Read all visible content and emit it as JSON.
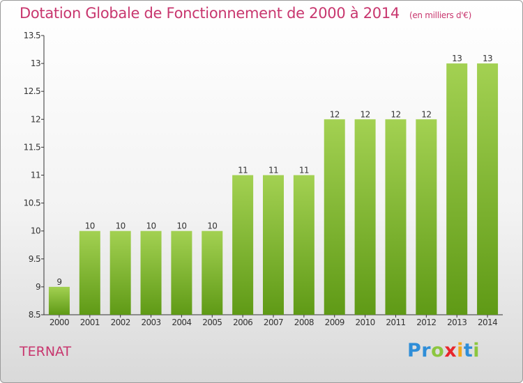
{
  "header": {
    "title": "Dotation Globale de Fonctionnement de 2000 à 2014",
    "unit": "(en milliers d'€)"
  },
  "footer": {
    "commune": "TERNAT",
    "logo_letters": [
      {
        "char": "P",
        "color": "#2f8ed8"
      },
      {
        "char": "r",
        "color": "#2f8ed8"
      },
      {
        "char": "o",
        "color": "#8cc63f"
      },
      {
        "char": "x",
        "color": "#e8262c"
      },
      {
        "char": "i",
        "color": "#f2a81d"
      },
      {
        "char": "t",
        "color": "#2f8ed8"
      },
      {
        "char": "i",
        "color": "#8cc63f"
      }
    ]
  },
  "colors": {
    "title": "#c8366e",
    "bar_light": "#a3d152",
    "bar_dark": "#5f9a16",
    "axis": "#333333"
  },
  "chart_data": {
    "type": "bar",
    "title": "Dotation Globale de Fonctionnement de 2000 à 2014",
    "subtitle": "(en milliers d'€)",
    "xlabel": "",
    "ylabel": "",
    "categories": [
      "2000",
      "2001",
      "2002",
      "2003",
      "2004",
      "2005",
      "2006",
      "2007",
      "2008",
      "2009",
      "2010",
      "2011",
      "2012",
      "2013",
      "2014"
    ],
    "values": [
      9,
      10,
      10,
      10,
      10,
      10,
      11,
      11,
      11,
      12,
      12,
      12,
      12,
      13,
      13
    ],
    "data_labels": [
      "9",
      "10",
      "10",
      "10",
      "10",
      "10",
      "11",
      "11",
      "11",
      "12",
      "12",
      "12",
      "12",
      "13",
      "13"
    ],
    "ylim": [
      8.5,
      13.5
    ],
    "yticks": [
      8.5,
      9,
      9.5,
      10,
      10.5,
      11,
      11.5,
      12,
      12.5,
      13,
      13.5
    ],
    "ytick_labels": [
      "8.5",
      "9",
      "9.5",
      "10",
      "10.5",
      "11",
      "11.5",
      "12",
      "12.5",
      "13",
      "13.5"
    ],
    "grid": false,
    "legend": "none"
  }
}
